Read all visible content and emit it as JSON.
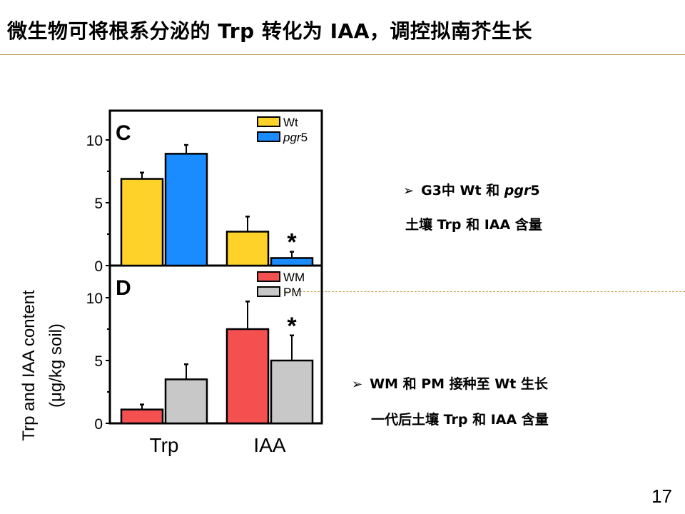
{
  "slide": {
    "title": "微生物可将根系分泌的 Trp 转化为 IAA，调控拟南芥生长",
    "bullets": [
      {
        "line1_prefix": "G3中 Wt 和 ",
        "line1_italic": "pgr",
        "line1_suffix": "5",
        "line2": "土壤 Trp 和 IAA 含量"
      },
      {
        "line1": "WM 和 PM 接种至 Wt 生长",
        "line2": "一代后土壤 Trp 和 IAA 含量"
      }
    ],
    "page_number": "17",
    "bullet_symbol": "➢"
  },
  "chart_data": [
    {
      "type": "bar",
      "panel_label": "C",
      "categories": [
        "Trp",
        "IAA"
      ],
      "ylabel": "Trp and IAA content",
      "ylabel2": "(μg/kg soil)",
      "ylim": [
        0,
        12
      ],
      "yticks": [
        0,
        5,
        10
      ],
      "legend_position": "top-right",
      "series": [
        {
          "name": "Wt",
          "color": "#ffd22a",
          "values": [
            6.9,
            2.7
          ],
          "errors": [
            0.5,
            1.2
          ]
        },
        {
          "name": "pgr5",
          "name_italic": "pgr",
          "name_suffix": "5",
          "color": "#1a8cff",
          "values": [
            8.9,
            0.6
          ],
          "errors": [
            0.7,
            0.5
          ]
        }
      ],
      "annotations": [
        {
          "text": "*",
          "category": "IAA",
          "series": "pgr5"
        }
      ]
    },
    {
      "type": "bar",
      "panel_label": "D",
      "categories": [
        "Trp",
        "IAA"
      ],
      "ylim": [
        0,
        12
      ],
      "yticks": [
        0,
        5,
        10
      ],
      "legend_position": "top-right",
      "series": [
        {
          "name": "WM",
          "color": "#f55050",
          "values": [
            1.1,
            7.5
          ],
          "errors": [
            0.4,
            2.2
          ]
        },
        {
          "name": "PM",
          "color": "#c8c8c8",
          "values": [
            3.5,
            5.0
          ],
          "errors": [
            1.2,
            2.0
          ]
        }
      ],
      "annotations": [
        {
          "text": "*",
          "category": "IAA",
          "series": "PM"
        }
      ]
    }
  ]
}
